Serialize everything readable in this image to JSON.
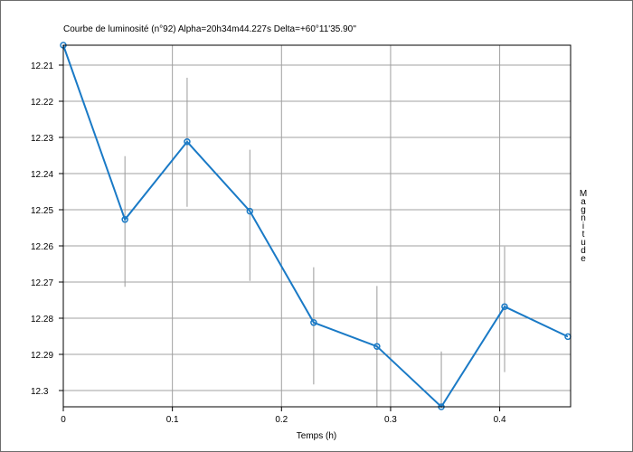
{
  "chart_data": {
    "type": "line",
    "title": "Courbe de luminosité (n°92) Alpha=20h34m44.227s Delta=+60°11'35.90''",
    "xlabel": "Temps (h)",
    "ylabel": "Magnitude",
    "xlim": [
      0,
      0.465
    ],
    "ylim": [
      12.2045,
      12.3045
    ],
    "y_inverted": true,
    "grid": true,
    "x_ticks": [
      0,
      0.1,
      0.2,
      0.3,
      0.4
    ],
    "x_tick_labels": [
      "0",
      "0.1",
      "0.2",
      "0.3",
      "0.4"
    ],
    "y_ticks": [
      12.21,
      12.22,
      12.23,
      12.24,
      12.25,
      12.26,
      12.27,
      12.28,
      12.29,
      12.3
    ],
    "y_tick_labels": [
      "12.21",
      "12.22",
      "12.23",
      "12.24",
      "12.25",
      "12.26",
      "12.27",
      "12.28",
      "12.29",
      "12.3"
    ],
    "series": [
      {
        "x": [
          0,
          0.0565,
          0.1135,
          0.171,
          0.2295,
          0.2875,
          0.3465,
          0.4045,
          0.4625
        ],
        "y": [
          12.2045,
          12.2527,
          12.2312,
          12.2504,
          12.2812,
          12.2878,
          12.3045,
          12.2768,
          12.2851
        ],
        "err_low": [
          null,
          12.2352,
          12.2135,
          12.2334,
          12.2659,
          12.2711,
          12.2892,
          12.2602,
          null
        ],
        "err_high": [
          null,
          12.2713,
          12.2492,
          12.2697,
          12.2983,
          12.3045,
          12.3045,
          12.2949,
          null
        ],
        "color": "#1a7ac6"
      }
    ]
  },
  "colors": {
    "grid": "#a0a0a0",
    "error_bar": "#9a9a9a",
    "axis": "#000000",
    "line": "#1a7ac6"
  }
}
